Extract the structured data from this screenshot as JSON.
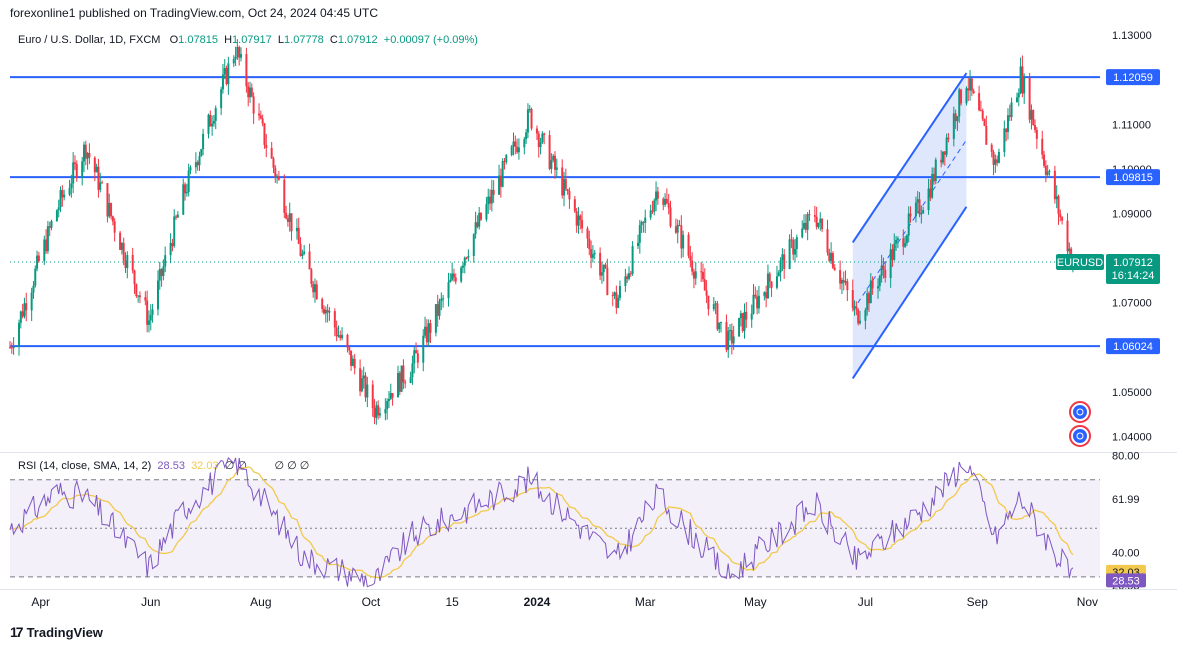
{
  "header": {
    "published": "forexonline1 published on TradingView.com, Oct 24, 2024 04:45 UTC"
  },
  "legend": {
    "symbol": "Euro / U.S. Dollar, 1D, FXCM",
    "o_label": "O",
    "o": "1.07815",
    "h_label": "H",
    "h": "1.07917",
    "l_label": "L",
    "l": "1.07778",
    "c_label": "C",
    "c": "1.07912",
    "change": "+0.00097 (+0.09%)"
  },
  "rsi_legend": {
    "label": "RSI (14, close, SMA, 14, 2)",
    "rsi": "28.53",
    "sma": "32.03",
    "empty": "∅ ∅",
    "empty2": "∅ ∅ ∅"
  },
  "brand": {
    "logo": "17",
    "name": "TradingView"
  },
  "price_badge": {
    "symbol": "EURUSD",
    "price": "1.07912",
    "countdown": "16:14:24"
  },
  "colors": {
    "up": "#089981",
    "down": "#f23645",
    "line": "#2962ff",
    "rsi": "#7e57c2",
    "rsi_sma": "#f2c94c",
    "axis_text": "#131722",
    "channel_fill": "#c5d3fb"
  },
  "chart_data": {
    "type": "candlestick",
    "title": "Euro / U.S. Dollar, 1D, FXCM",
    "x_ticks": [
      "Apr",
      "Jun",
      "Aug",
      "Oct",
      "15",
      "2024",
      "Mar",
      "May",
      "Jul",
      "Sep",
      "Nov"
    ],
    "price_ticks": [
      "1.13000",
      "1.11000",
      "1.10000",
      "1.09000",
      "1.07000",
      "1.05000",
      "1.04000"
    ],
    "ylim": [
      1.0365,
      1.1325
    ],
    "horizontal_levels": [
      {
        "label": "1.12059",
        "value": 1.12059
      },
      {
        "label": "1.09815",
        "value": 1.09815
      },
      {
        "label": "1.06024",
        "value": 1.06024
      }
    ],
    "last_close": 1.07912,
    "ascending_channel": {
      "upper": [
        {
          "date": "2024-06-24",
          "value": 1.0835
        },
        {
          "date": "2024-08-26",
          "value": 1.1215
        }
      ],
      "lower": [
        {
          "date": "2024-06-24",
          "value": 1.053
        },
        {
          "date": "2024-08-26",
          "value": 1.0915
        }
      ]
    },
    "price_path": [
      {
        "date": "2023-03-15",
        "value": 1.06
      },
      {
        "date": "2023-04-10",
        "value": 1.091
      },
      {
        "date": "2023-04-26",
        "value": 1.105
      },
      {
        "date": "2023-05-31",
        "value": 1.066
      },
      {
        "date": "2023-06-19",
        "value": 1.094
      },
      {
        "date": "2023-07-18",
        "value": 1.127
      },
      {
        "date": "2023-08-25",
        "value": 1.079
      },
      {
        "date": "2023-10-03",
        "value": 1.046
      },
      {
        "date": "2023-10-24",
        "value": 1.056
      },
      {
        "date": "2023-12-28",
        "value": 1.112
      },
      {
        "date": "2024-02-14",
        "value": 1.07
      },
      {
        "date": "2024-03-08",
        "value": 1.096
      },
      {
        "date": "2024-04-16",
        "value": 1.061
      },
      {
        "date": "2024-06-03",
        "value": 1.09
      },
      {
        "date": "2024-06-26",
        "value": 1.067
      },
      {
        "date": "2024-08-05",
        "value": 1.095
      },
      {
        "date": "2024-08-26",
        "value": 1.12
      },
      {
        "date": "2024-09-11",
        "value": 1.101
      },
      {
        "date": "2024-09-25",
        "value": 1.121
      },
      {
        "date": "2024-10-24",
        "value": 1.0791
      }
    ],
    "rsi_ticks": [
      "80.00",
      "61.99",
      "40.00",
      "26.53"
    ],
    "rsi_ylim": [
      25,
      81
    ],
    "rsi_bands": [
      70,
      50,
      30
    ],
    "rsi": {
      "name": "RSI (14, close, SMA, 14, 2)",
      "path": [
        {
          "date": "2023-03-15",
          "value": 50
        },
        {
          "date": "2023-04-10",
          "value": 65
        },
        {
          "date": "2023-04-26",
          "value": 63
        },
        {
          "date": "2023-05-31",
          "value": 34
        },
        {
          "date": "2023-06-19",
          "value": 58
        },
        {
          "date": "2023-07-18",
          "value": 78
        },
        {
          "date": "2023-08-25",
          "value": 38
        },
        {
          "date": "2023-10-03",
          "value": 28
        },
        {
          "date": "2023-10-24",
          "value": 47
        },
        {
          "date": "2023-12-28",
          "value": 70
        },
        {
          "date": "2024-02-14",
          "value": 37
        },
        {
          "date": "2024-03-08",
          "value": 64
        },
        {
          "date": "2024-04-16",
          "value": 30
        },
        {
          "date": "2024-06-03",
          "value": 60
        },
        {
          "date": "2024-06-26",
          "value": 36
        },
        {
          "date": "2024-08-05",
          "value": 60
        },
        {
          "date": "2024-08-26",
          "value": 78
        },
        {
          "date": "2024-09-11",
          "value": 46
        },
        {
          "date": "2024-09-25",
          "value": 63
        },
        {
          "date": "2024-10-24",
          "value": 28.53
        }
      ],
      "last": 28.53,
      "sma_last": 32.03
    }
  }
}
